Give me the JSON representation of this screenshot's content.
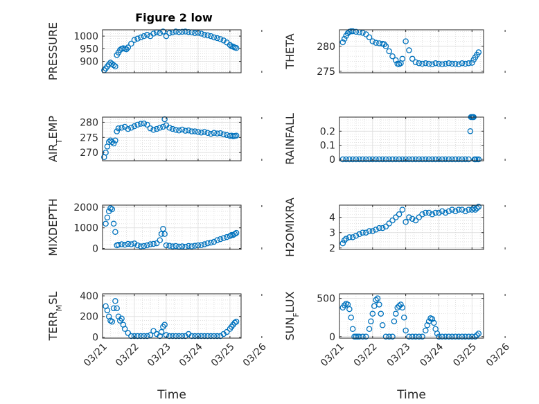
{
  "figure_title": "Figure 2 low",
  "marker_color": "#0072BD",
  "chart_data": [
    {
      "type": "scatter",
      "id": "pressure",
      "title": "Figure 2 low",
      "ylabel": "PRESSURE",
      "ylabel_sub": "",
      "ylabel_tail": "",
      "xlabel": "",
      "x_is_time": true,
      "xlim": [
        0,
        4.35
      ],
      "ylim": [
        855,
        1025
      ],
      "yticks": [
        900,
        950,
        1000
      ],
      "ytick_labels": [
        "900",
        "950",
        "1000"
      ],
      "xticks": [
        0,
        1,
        2,
        3,
        4,
        5
      ],
      "xtick_labels": [
        "",
        "",
        "",
        "",
        "",
        ""
      ],
      "grid": true,
      "x": [
        0.05,
        0.1,
        0.15,
        0.2,
        0.25,
        0.3,
        0.35,
        0.4,
        0.45,
        0.5,
        0.55,
        0.6,
        0.65,
        0.7,
        0.75,
        0.8,
        0.9,
        1,
        1.1,
        1.2,
        1.3,
        1.4,
        1.5,
        1.6,
        1.7,
        1.8,
        1.9,
        2,
        2.1,
        2.2,
        2.3,
        2.4,
        2.5,
        2.6,
        2.7,
        2.8,
        2.9,
        3,
        3.1,
        3.2,
        3.3,
        3.4,
        3.5,
        3.6,
        3.7,
        3.8,
        3.9,
        4,
        4.05,
        4.1,
        4.15,
        4.2
      ],
      "y": [
        865,
        872,
        880,
        888,
        895,
        890,
        885,
        880,
        925,
        935,
        945,
        950,
        952,
        950,
        948,
        955,
        970,
        985,
        990,
        995,
        1000,
        1005,
        1000,
        1010,
        1015,
        1012,
        1018,
        1000,
        1012,
        1015,
        1018,
        1016,
        1017,
        1018,
        1016,
        1015,
        1012,
        1013,
        1010,
        1005,
        1003,
        1000,
        995,
        992,
        988,
        983,
        975,
        965,
        960,
        958,
        955,
        953
      ]
    },
    {
      "type": "scatter",
      "id": "theta",
      "title": "",
      "ylabel": "THETA",
      "ylabel_sub": "",
      "ylabel_tail": "",
      "xlabel": "",
      "x_is_time": true,
      "xlim": [
        0,
        4.35
      ],
      "ylim": [
        274.7,
        283.3
      ],
      "yticks": [
        275,
        280
      ],
      "ytick_labels": [
        "275",
        "280"
      ],
      "xticks": [
        0,
        1,
        2,
        3,
        4,
        5
      ],
      "xtick_labels": [
        "",
        "",
        "",
        "",
        "",
        ""
      ],
      "grid": true,
      "x": [
        0.1,
        0.15,
        0.2,
        0.25,
        0.3,
        0.35,
        0.4,
        0.5,
        0.6,
        0.7,
        0.8,
        0.9,
        1,
        1.1,
        1.2,
        1.3,
        1.35,
        1.4,
        1.5,
        1.6,
        1.7,
        1.75,
        1.8,
        1.85,
        1.9,
        2,
        2.1,
        2.2,
        2.3,
        2.4,
        2.5,
        2.6,
        2.7,
        2.8,
        2.9,
        3,
        3.1,
        3.2,
        3.3,
        3.4,
        3.5,
        3.6,
        3.7,
        3.8,
        3.9,
        4,
        4.05,
        4.1,
        4.15,
        4.2
      ],
      "y": [
        280.8,
        281.5,
        282.1,
        282.6,
        282.9,
        283.0,
        283.0,
        282.9,
        282.8,
        282.7,
        282.4,
        281.8,
        281,
        280.7,
        280.6,
        280.5,
        280.4,
        280,
        279,
        278,
        277.2,
        276.5,
        276.4,
        276.6,
        277.5,
        281,
        279.2,
        277.5,
        276.8,
        276.6,
        276.5,
        276.6,
        276.5,
        276.4,
        276.6,
        276.5,
        276.4,
        276.5,
        276.6,
        276.5,
        276.5,
        276.4,
        276.6,
        276.5,
        276.6,
        276.7,
        277.3,
        277.8,
        278.3,
        278.8
      ]
    },
    {
      "type": "scatter",
      "id": "air_temp",
      "title": "",
      "ylabel": "AIR",
      "ylabel_sub": "T",
      "ylabel_tail": "EMP",
      "xlabel": "",
      "x_is_time": true,
      "xlim": [
        0,
        4.35
      ],
      "ylim": [
        267.3,
        281.7
      ],
      "yticks": [
        270,
        275,
        280
      ],
      "ytick_labels": [
        "270",
        "275",
        "280"
      ],
      "xticks": [
        0,
        1,
        2,
        3,
        4,
        5
      ],
      "xtick_labels": [
        "",
        "",
        "",
        "",
        "",
        ""
      ],
      "grid": true,
      "x": [
        0.05,
        0.1,
        0.15,
        0.2,
        0.25,
        0.3,
        0.35,
        0.4,
        0.45,
        0.5,
        0.6,
        0.7,
        0.8,
        0.9,
        1,
        1.1,
        1.2,
        1.3,
        1.4,
        1.5,
        1.6,
        1.7,
        1.8,
        1.9,
        1.95,
        2,
        2.1,
        2.2,
        2.3,
        2.4,
        2.5,
        2.6,
        2.7,
        2.8,
        2.9,
        3,
        3.1,
        3.2,
        3.3,
        3.4,
        3.5,
        3.6,
        3.7,
        3.8,
        3.9,
        4,
        4.05,
        4.1,
        4.15,
        4.2
      ],
      "y": [
        268.5,
        270,
        272,
        273.5,
        274,
        273.5,
        273,
        274,
        277,
        278,
        278.2,
        278.5,
        277.8,
        278.2,
        278.7,
        279.2,
        279.5,
        279.6,
        279.2,
        278,
        277.5,
        277.8,
        278.2,
        278.5,
        281,
        279,
        278.2,
        277.8,
        277.5,
        277.3,
        277.6,
        277.2,
        277.3,
        277,
        277,
        276.8,
        276.6,
        276.8,
        276.5,
        276.2,
        276.5,
        276.3,
        276.4,
        276,
        275.8,
        275.5,
        275.6,
        275.4,
        275.5,
        275.6
      ]
    },
    {
      "type": "scatter",
      "id": "rainfall",
      "title": "",
      "ylabel": "RAINFALL",
      "ylabel_sub": "",
      "ylabel_tail": "",
      "xlabel": "",
      "x_is_time": true,
      "xlim": [
        0,
        4.35
      ],
      "ylim": [
        -0.01,
        0.3
      ],
      "yticks": [
        0,
        0.1,
        0.2
      ],
      "ytick_labels": [
        "0",
        "0.1",
        "0.2"
      ],
      "xticks": [
        0,
        1,
        2,
        3,
        4,
        5
      ],
      "xtick_labels": [
        "",
        "",
        "",
        "",
        "",
        ""
      ],
      "grid": true,
      "x": [
        0.1,
        0.2,
        0.3,
        0.4,
        0.5,
        0.6,
        0.7,
        0.8,
        0.9,
        1,
        1.1,
        1.2,
        1.3,
        1.4,
        1.5,
        1.6,
        1.7,
        1.8,
        1.9,
        2,
        2.1,
        2.2,
        2.3,
        2.4,
        2.5,
        2.6,
        2.7,
        2.8,
        2.9,
        3,
        3.1,
        3.2,
        3.3,
        3.4,
        3.5,
        3.6,
        3.7,
        3.8,
        3.9,
        3.95,
        3.97,
        4.0,
        4.03,
        4.05,
        4.08,
        4.1,
        4.15,
        4.2
      ],
      "y": [
        0,
        0,
        0,
        0,
        0,
        0,
        0,
        0,
        0,
        0,
        0,
        0,
        0,
        0,
        0,
        0,
        0,
        0,
        0,
        0,
        0,
        0,
        0,
        0,
        0,
        0,
        0,
        0,
        0,
        0,
        0,
        0,
        0,
        0,
        0,
        0,
        0,
        0,
        0,
        0.2,
        0.3,
        0.3,
        0.3,
        0.3,
        0,
        0,
        0,
        0
      ]
    },
    {
      "type": "scatter",
      "id": "mixdepth",
      "title": "",
      "ylabel": "MIXDEPTH",
      "ylabel_sub": "",
      "ylabel_tail": "",
      "xlabel": "",
      "x_is_time": true,
      "xlim": [
        0,
        4.35
      ],
      "ylim": [
        -50,
        2100
      ],
      "yticks": [
        0,
        1000,
        2000
      ],
      "ytick_labels": [
        "0",
        "1000",
        "2000"
      ],
      "xticks": [
        0,
        1,
        2,
        3,
        4,
        5
      ],
      "xtick_labels": [
        "",
        "",
        "",
        "",
        "",
        ""
      ],
      "grid": true,
      "x": [
        0.1,
        0.15,
        0.2,
        0.25,
        0.3,
        0.35,
        0.4,
        0.45,
        0.5,
        0.6,
        0.7,
        0.8,
        0.9,
        1,
        1.1,
        1.2,
        1.3,
        1.4,
        1.5,
        1.6,
        1.7,
        1.8,
        1.85,
        1.9,
        1.95,
        2,
        2.1,
        2.2,
        2.3,
        2.4,
        2.5,
        2.6,
        2.7,
        2.8,
        2.9,
        3,
        3.1,
        3.2,
        3.3,
        3.4,
        3.5,
        3.6,
        3.7,
        3.8,
        3.9,
        4,
        4.05,
        4.1,
        4.15,
        4.2
      ],
      "y": [
        1200,
        1500,
        1800,
        1950,
        1900,
        1200,
        800,
        150,
        180,
        200,
        180,
        220,
        200,
        240,
        150,
        100,
        120,
        150,
        200,
        220,
        250,
        400,
        700,
        950,
        700,
        150,
        130,
        100,
        120,
        90,
        100,
        80,
        120,
        100,
        130,
        150,
        160,
        200,
        250,
        280,
        320,
        400,
        450,
        500,
        550,
        600,
        650,
        650,
        700,
        750
      ]
    },
    {
      "type": "scatter",
      "id": "h2omixra",
      "title": "",
      "ylabel": "H2OMIXRA",
      "ylabel_sub": "",
      "ylabel_tail": "",
      "xlabel": "",
      "x_is_time": true,
      "xlim": [
        0,
        4.35
      ],
      "ylim": [
        1.9,
        4.8
      ],
      "yticks": [
        2,
        3,
        4
      ],
      "ytick_labels": [
        "2",
        "3",
        "4"
      ],
      "xticks": [
        0,
        1,
        2,
        3,
        4,
        5
      ],
      "xtick_labels": [
        "",
        "",
        "",
        "",
        "",
        ""
      ],
      "grid": true,
      "x": [
        0.1,
        0.15,
        0.2,
        0.3,
        0.4,
        0.5,
        0.6,
        0.7,
        0.8,
        0.9,
        1,
        1.1,
        1.2,
        1.3,
        1.4,
        1.5,
        1.6,
        1.7,
        1.8,
        1.9,
        2,
        2.1,
        2.2,
        2.3,
        2.4,
        2.5,
        2.6,
        2.7,
        2.8,
        2.9,
        3,
        3.1,
        3.2,
        3.3,
        3.4,
        3.5,
        3.6,
        3.7,
        3.8,
        3.9,
        4,
        4.05,
        4.1,
        4.15,
        4.2
      ],
      "y": [
        2.3,
        2.5,
        2.6,
        2.7,
        2.7,
        2.8,
        2.9,
        3,
        3,
        3.1,
        3.1,
        3.2,
        3.3,
        3.3,
        3.4,
        3.6,
        3.8,
        4,
        4.2,
        4.5,
        3.7,
        4,
        3.9,
        3.8,
        4,
        4.2,
        4.3,
        4.3,
        4.2,
        4.3,
        4.3,
        4.4,
        4.3,
        4.4,
        4.5,
        4.4,
        4.5,
        4.5,
        4.4,
        4.5,
        4.5,
        4.6,
        4.5,
        4.6,
        4.7
      ]
    },
    {
      "type": "scatter",
      "id": "terr_msl",
      "title": "",
      "ylabel": "TERR",
      "ylabel_sub": "M",
      "ylabel_tail": "SL",
      "xlabel": "Time",
      "x_is_time": true,
      "xlim": [
        0,
        4.35
      ],
      "ylim": [
        -10,
        420
      ],
      "yticks": [
        0,
        200,
        400
      ],
      "ytick_labels": [
        "0",
        "200",
        "400"
      ],
      "xticks": [
        0,
        1,
        2,
        3,
        4,
        5
      ],
      "xtick_labels": [
        "03/21",
        "03/22",
        "03/23",
        "03/24",
        "03/25",
        "03/26"
      ],
      "grid": true,
      "x": [
        0.1,
        0.15,
        0.2,
        0.25,
        0.3,
        0.35,
        0.4,
        0.45,
        0.5,
        0.55,
        0.6,
        0.65,
        0.7,
        0.8,
        0.9,
        1,
        1.1,
        1.2,
        1.3,
        1.4,
        1.5,
        1.6,
        1.7,
        1.8,
        1.85,
        1.9,
        1.95,
        2,
        2.1,
        2.2,
        2.3,
        2.4,
        2.5,
        2.6,
        2.7,
        2.8,
        2.9,
        3,
        3.1,
        3.2,
        3.3,
        3.4,
        3.5,
        3.6,
        3.7,
        3.8,
        3.9,
        4,
        4.05,
        4.1,
        4.15,
        4.2
      ],
      "y": [
        300,
        260,
        200,
        160,
        150,
        280,
        350,
        280,
        200,
        160,
        180,
        120,
        80,
        40,
        10,
        10,
        10,
        10,
        10,
        10,
        20,
        60,
        30,
        10,
        50,
        100,
        120,
        20,
        10,
        10,
        10,
        10,
        10,
        10,
        30,
        10,
        10,
        10,
        10,
        10,
        10,
        10,
        10,
        10,
        10,
        30,
        50,
        80,
        100,
        120,
        140,
        150
      ]
    },
    {
      "type": "scatter",
      "id": "sun_flux",
      "title": "",
      "ylabel": "SUN",
      "ylabel_sub": "F",
      "ylabel_tail": "LUX",
      "xlabel": "Time",
      "x_is_time": true,
      "xlim": [
        0,
        4.35
      ],
      "ylim": [
        -20,
        560
      ],
      "yticks": [
        0,
        500
      ],
      "ytick_labels": [
        "0",
        "500"
      ],
      "xticks": [
        0,
        1,
        2,
        3,
        4,
        5
      ],
      "xtick_labels": [
        "03/21",
        "03/22",
        "03/23",
        "03/24",
        "03/25",
        "03/26"
      ],
      "grid": true,
      "x": [
        0.1,
        0.15,
        0.2,
        0.25,
        0.3,
        0.35,
        0.4,
        0.45,
        0.5,
        0.55,
        0.6,
        0.7,
        0.8,
        0.9,
        0.95,
        1,
        1.05,
        1.1,
        1.15,
        1.2,
        1.25,
        1.3,
        1.4,
        1.5,
        1.6,
        1.65,
        1.7,
        1.75,
        1.8,
        1.85,
        1.9,
        1.95,
        2,
        2.1,
        2.2,
        2.3,
        2.4,
        2.5,
        2.6,
        2.65,
        2.7,
        2.75,
        2.8,
        2.85,
        2.9,
        2.95,
        3,
        3.1,
        3.2,
        3.3,
        3.4,
        3.5,
        3.6,
        3.7,
        3.8,
        3.9,
        4,
        4.1,
        4.15,
        4.2
      ],
      "y": [
        380,
        410,
        430,
        420,
        360,
        250,
        100,
        0,
        0,
        0,
        0,
        0,
        0,
        100,
        200,
        300,
        400,
        480,
        500,
        420,
        300,
        150,
        0,
        0,
        0,
        200,
        300,
        380,
        400,
        420,
        380,
        250,
        80,
        0,
        0,
        0,
        0,
        0,
        80,
        150,
        200,
        240,
        230,
        180,
        100,
        40,
        0,
        0,
        0,
        0,
        0,
        0,
        0,
        0,
        0,
        0,
        0,
        0,
        20,
        40
      ]
    }
  ]
}
